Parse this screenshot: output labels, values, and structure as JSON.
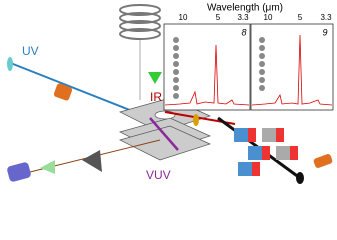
{
  "labels": {
    "uv": "UV",
    "ir": "IR",
    "vuv": "VUV"
  },
  "spectra": {
    "axis_label": "Wavelength (μm)",
    "panels": [
      {
        "label": "8",
        "ticks": [
          "10",
          "5",
          "3.3"
        ]
      },
      {
        "label": "9",
        "ticks": [
          "10",
          "5",
          "3.3"
        ]
      }
    ]
  }
}
